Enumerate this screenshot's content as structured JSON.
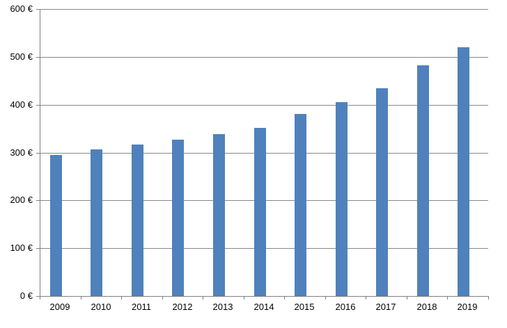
{
  "chart_data": {
    "type": "bar",
    "title": "",
    "xlabel": "",
    "ylabel": "",
    "categories": [
      "2009",
      "2010",
      "2011",
      "2012",
      "2013",
      "2014",
      "2015",
      "2016",
      "2017",
      "2018",
      "2019"
    ],
    "values": [
      295,
      307,
      317,
      327,
      338,
      352,
      380,
      406,
      435,
      482,
      520
    ],
    "ylim": [
      0,
      600
    ],
    "y_tick_step": 100,
    "y_tick_labels": [
      "0 €",
      "100 €",
      "200 €",
      "300 €",
      "400 €",
      "500 €",
      "600 €"
    ],
    "currency_suffix": " €",
    "grid": true,
    "legend": false,
    "colors": {
      "bar": "#4F81BD",
      "gridline": "#878787",
      "axis": "#808080",
      "text": "#000000",
      "background": "#FFFFFF"
    }
  }
}
